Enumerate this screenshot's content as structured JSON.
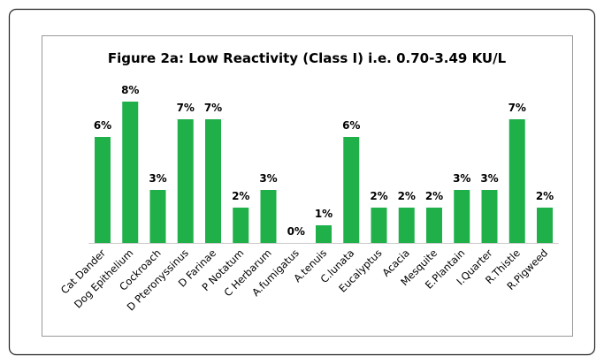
{
  "chart_data": {
    "type": "bar",
    "title": "Figure 2a: Low Reactivity (Class I) i.e. 0.70-3.49 KU/L",
    "categories": [
      "Cat Dander",
      "Dog Epithelium",
      "Cockroach",
      "D Pteronyssinus",
      "D Farinae",
      "P Notatum",
      "C Herbarum",
      "A.fumigatus",
      "A.tenuis",
      "C.lunata",
      "Eucalyptus",
      "Acacia",
      "Mesquite",
      "E.Plantain",
      "I.Quarter",
      "R.Thistle",
      "R.Pigweed"
    ],
    "values": [
      6,
      8,
      3,
      7,
      7,
      2,
      3,
      0,
      1,
      6,
      2,
      2,
      2,
      3,
      3,
      7,
      2
    ],
    "value_labels": [
      "6%",
      "8%",
      "3%",
      "7%",
      "7%",
      "2%",
      "3%",
      "0%",
      "1%",
      "6%",
      "2%",
      "2%",
      "2%",
      "3%",
      "3%",
      "7%",
      "2%"
    ],
    "color": "#1fb04a"
  }
}
